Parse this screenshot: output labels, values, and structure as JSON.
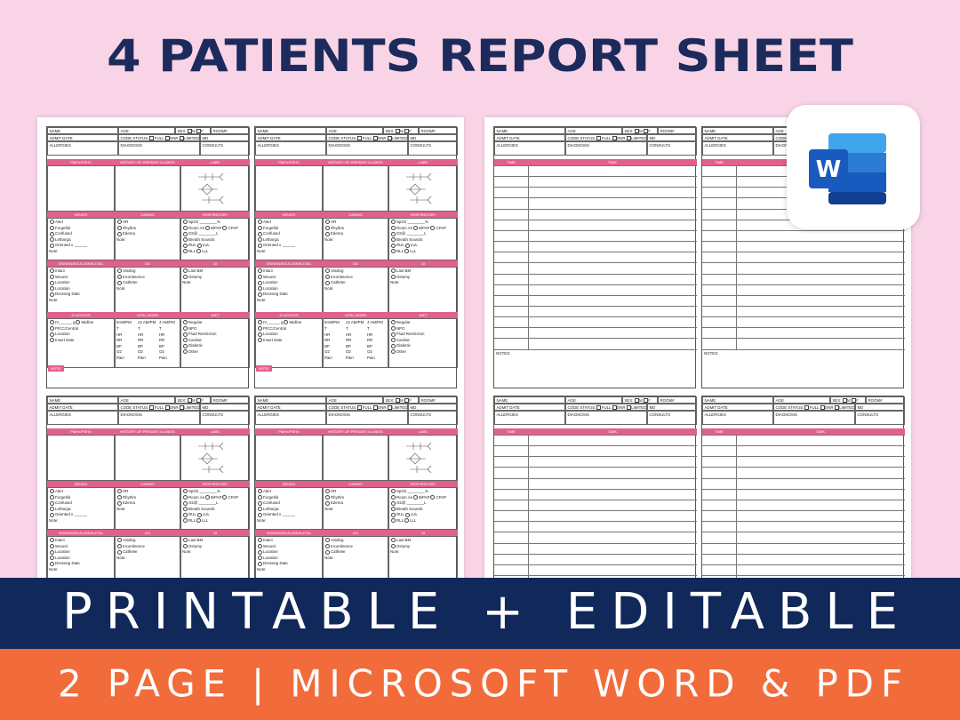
{
  "title": "4 PATIENTS REPORT SHEET",
  "banner": "PRINTABLE + EDITABLE",
  "footer": "2 PAGE | MICROSOFT WORD & PDF",
  "word_icon": "W",
  "sheet_header": {
    "name": "NAME",
    "age": "AGE",
    "sex": "SEX:",
    "sex_options": [
      "M",
      "F"
    ],
    "room": "ROOM#",
    "admit_date": "ADMIT DATE",
    "code_status": "CODE STATUS:",
    "code_options": [
      "FULL",
      "DNR",
      "LIMITED"
    ],
    "md": "MD",
    "allergies": "ALLERGIES",
    "diagnosis": "DIAGNOSIS",
    "consults": "CONSULTS"
  },
  "patient_sheet": {
    "sections": [
      {
        "headers": [
          "PMHX/PSHX",
          "HISTORY OF PRESENT ILLNESS",
          "LABS"
        ],
        "columns": [
          [],
          [],
          []
        ]
      },
      {
        "headers": [
          "NEURO",
          "CARDIO",
          "RESPIRATORY"
        ],
        "columns": [
          [
            [
              "Alert"
            ],
            [
              "Forgetful"
            ],
            [
              "Confused"
            ],
            [
              "Lethargic"
            ],
            [
              "Oriented x ______"
            ]
          ],
          [
            [
              "HR"
            ],
            [
              "Rhythm"
            ],
            [
              "Edema"
            ]
          ],
          [
            [
              "SpO2 ________%"
            ],
            [
              "Room Air",
              "BiPAP",
              "CPAP"
            ],
            [
              "O2@ ________L"
            ],
            [
              "Breath Sounds:"
            ],
            [
              "RUL",
              "LUL"
            ],
            [
              "RLL",
              "LLL"
            ]
          ]
        ],
        "notes": [
          "Note:",
          "Note:",
          null
        ]
      },
      {
        "headers": [
          "SKIN/MUSCULOSKELETAL",
          "GU",
          "GI"
        ],
        "columns": [
          [
            [
              "Intact"
            ],
            [
              "Wound"
            ],
            [
              "Location"
            ],
            [
              "Location"
            ],
            [
              "Dressing Date"
            ]
          ],
          [
            [
              "Voiding"
            ],
            [
              "Incontinence"
            ],
            [
              "Catheter"
            ]
          ],
          [
            [
              "Last BM"
            ],
            [
              "Ostomy"
            ]
          ]
        ],
        "notes": [
          "Note:",
          "Note:",
          "Note:"
        ]
      },
      {
        "headers": [
          "IV ACCESS",
          "VITAL SIGNS",
          "DIET"
        ],
        "columns": [
          [
            [
              "IV______ g",
              "Midline"
            ],
            [
              "PICC/Central"
            ],
            [
              "Location"
            ],
            [
              "Insert Date"
            ]
          ],
          [],
          [
            [
              "Regular"
            ],
            [
              "NPO"
            ],
            [
              "Fluid Restriction"
            ],
            [
              "Cardiac"
            ],
            [
              "Diabetic"
            ],
            [
              "Other"
            ]
          ]
        ],
        "notes": [
          null,
          null,
          null
        ]
      }
    ],
    "vital_times": [
      "8AM/PM",
      "12 AM/PM",
      "4 AM/PM"
    ],
    "vital_rows": [
      "T",
      "HR",
      "RR",
      "BP",
      "O2",
      "Pain"
    ],
    "note": "NOTE:"
  },
  "task_sheet": {
    "time": "TIME",
    "task": "TASK",
    "notes": "NOTES:"
  }
}
